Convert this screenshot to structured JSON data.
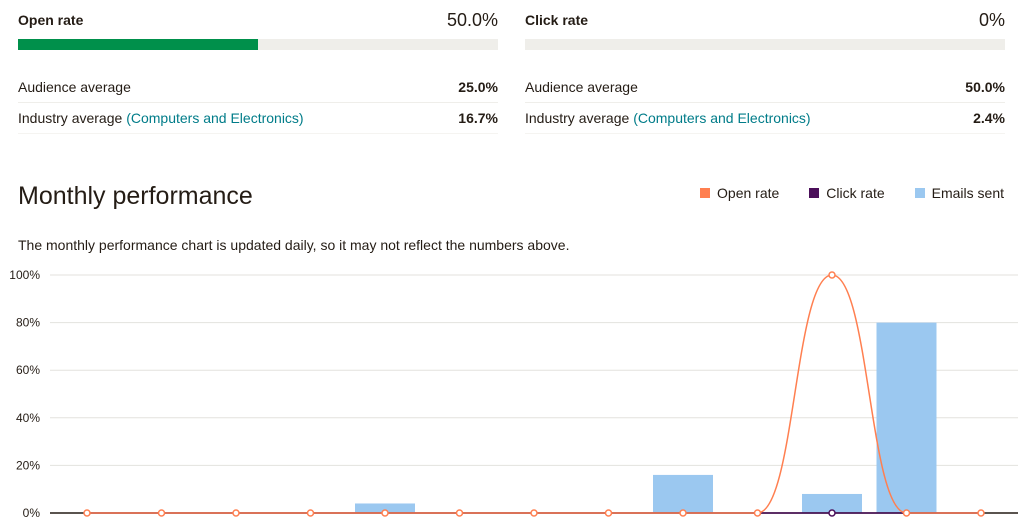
{
  "open_rate": {
    "title": "Open rate",
    "value": "50.0%",
    "progress": 0.5,
    "audience_label": "Audience average",
    "audience_value": "25.0%",
    "industry_label": "Industry average",
    "industry_category": "(Computers and Electronics)",
    "industry_value": "16.7%"
  },
  "click_rate": {
    "title": "Click rate",
    "value": "0%",
    "progress": 0,
    "audience_label": "Audience average",
    "audience_value": "50.0%",
    "industry_label": "Industry average",
    "industry_category": "(Computers and Electronics)",
    "industry_value": "2.4%"
  },
  "monthly": {
    "title": "Monthly performance",
    "note": "The monthly performance chart is updated daily, so it may not reflect the numbers above."
  },
  "colors": {
    "open_rate": "#ff7f50",
    "click_rate": "#4b0f5a",
    "emails_sent": "#9bc8f0",
    "progress_fill": "#00904b",
    "link": "#007c89"
  },
  "chart_data": {
    "type": "bar",
    "y_ticks": [
      "100%",
      "80%",
      "60%",
      "40%",
      "20%",
      "0%"
    ],
    "ylim": [
      0,
      100
    ],
    "grid": true,
    "legend": "top-right",
    "point_count": 13,
    "series": [
      {
        "name": "Open rate",
        "type": "line",
        "values": [
          0,
          0,
          0,
          0,
          0,
          0,
          0,
          0,
          0,
          0,
          100,
          0,
          0
        ]
      },
      {
        "name": "Click rate",
        "type": "line",
        "values": [
          0,
          0,
          0,
          0,
          0,
          0,
          0,
          0,
          0,
          0,
          0,
          0,
          0
        ]
      },
      {
        "name": "Emails sent",
        "type": "bar",
        "values": [
          0,
          0,
          0,
          0,
          4,
          0,
          0,
          0,
          16,
          0,
          8,
          80,
          0
        ]
      }
    ]
  }
}
